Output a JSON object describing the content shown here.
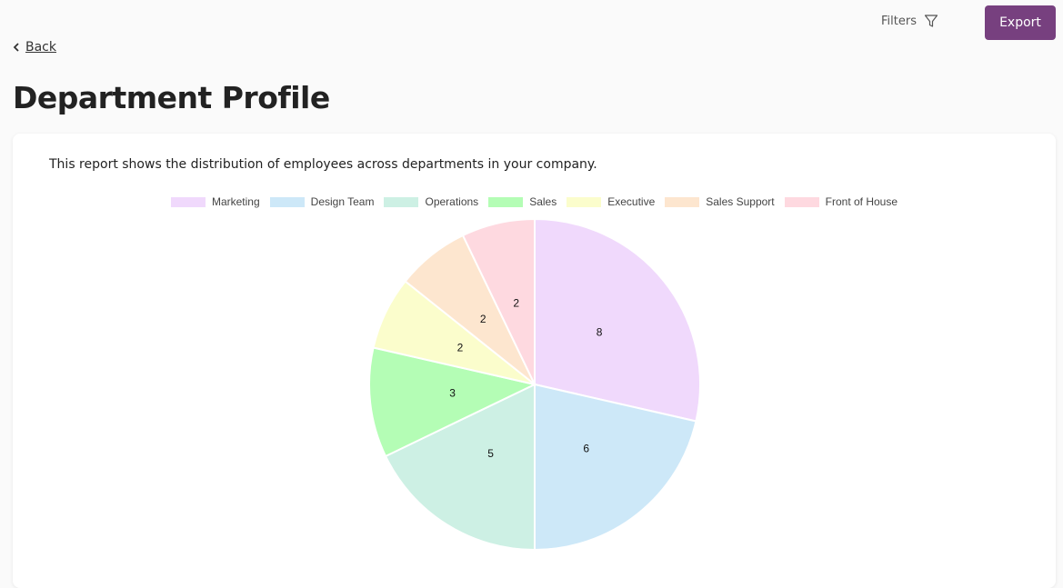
{
  "header": {
    "back": "Back",
    "filters": "Filters",
    "export": "Export",
    "title": "Department Profile"
  },
  "description": "This report shows the distribution of employees across departments in your company.",
  "chart_data": {
    "type": "pie",
    "categories": [
      "Marketing",
      "Design Team",
      "Operations",
      "Sales",
      "Executive",
      "Sales Support",
      "Front of House"
    ],
    "values": [
      8,
      6,
      5,
      3,
      2,
      2,
      2
    ],
    "colors": [
      "#f0d9fc",
      "#cde8f8",
      "#cdf0e4",
      "#b4fdb5",
      "#fbfdcc",
      "#fde6cf",
      "#fed9e0"
    ],
    "legend": "top"
  }
}
